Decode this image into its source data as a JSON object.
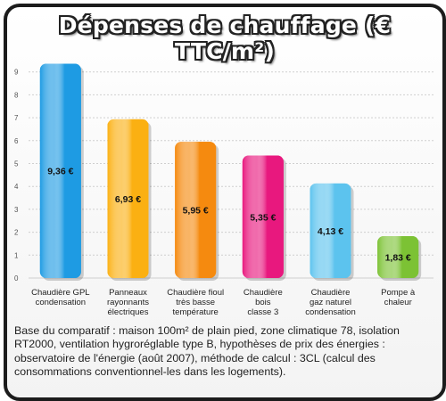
{
  "title": "Dépenses de chauffage (€ TTC/m²)",
  "basis_note": "Base du comparatif : maison 100m² de plain pied, zone climatique 78, isolation RT2000, ventilation hygroréglable type B, hypothèses de prix des énergies : observatoire de l'énergie (août 2007), méthode de calcul : 3CL (calcul des consommations conventionnel-les dans les logements).",
  "chart_data": {
    "type": "bar",
    "title": "Dépenses de chauffage (€ TTC/m²)",
    "ylim": [
      0,
      10
    ],
    "y_ticks": [
      0,
      1,
      2,
      3,
      4,
      5,
      6,
      7,
      8,
      9
    ],
    "grid": true,
    "categories": [
      [
        "Chaudière GPL",
        "condensation"
      ],
      [
        "Panneaux",
        "rayonnants",
        "électriques"
      ],
      [
        "Chaudière fioul",
        "très basse",
        "température"
      ],
      [
        "Chaudière",
        "bois",
        "classe 3"
      ],
      [
        "Chaudière",
        "gaz naturel",
        "condensation"
      ],
      [
        "Pompe à",
        "chaleur"
      ]
    ],
    "values": [
      9.36,
      6.93,
      5.95,
      5.35,
      4.13,
      1.83
    ],
    "value_labels": [
      "9,36 €",
      "6,93 €",
      "5,95 €",
      "5,35 €",
      "4,13 €",
      "1,83 €"
    ],
    "colors": [
      "#1e9be3",
      "#fbb012",
      "#f58a0f",
      "#e8187e",
      "#5cc3ee",
      "#7cc234"
    ],
    "label_colors": [
      "#111111",
      "#111111",
      "#111111",
      "#111111",
      "#111111",
      "#111111"
    ]
  }
}
